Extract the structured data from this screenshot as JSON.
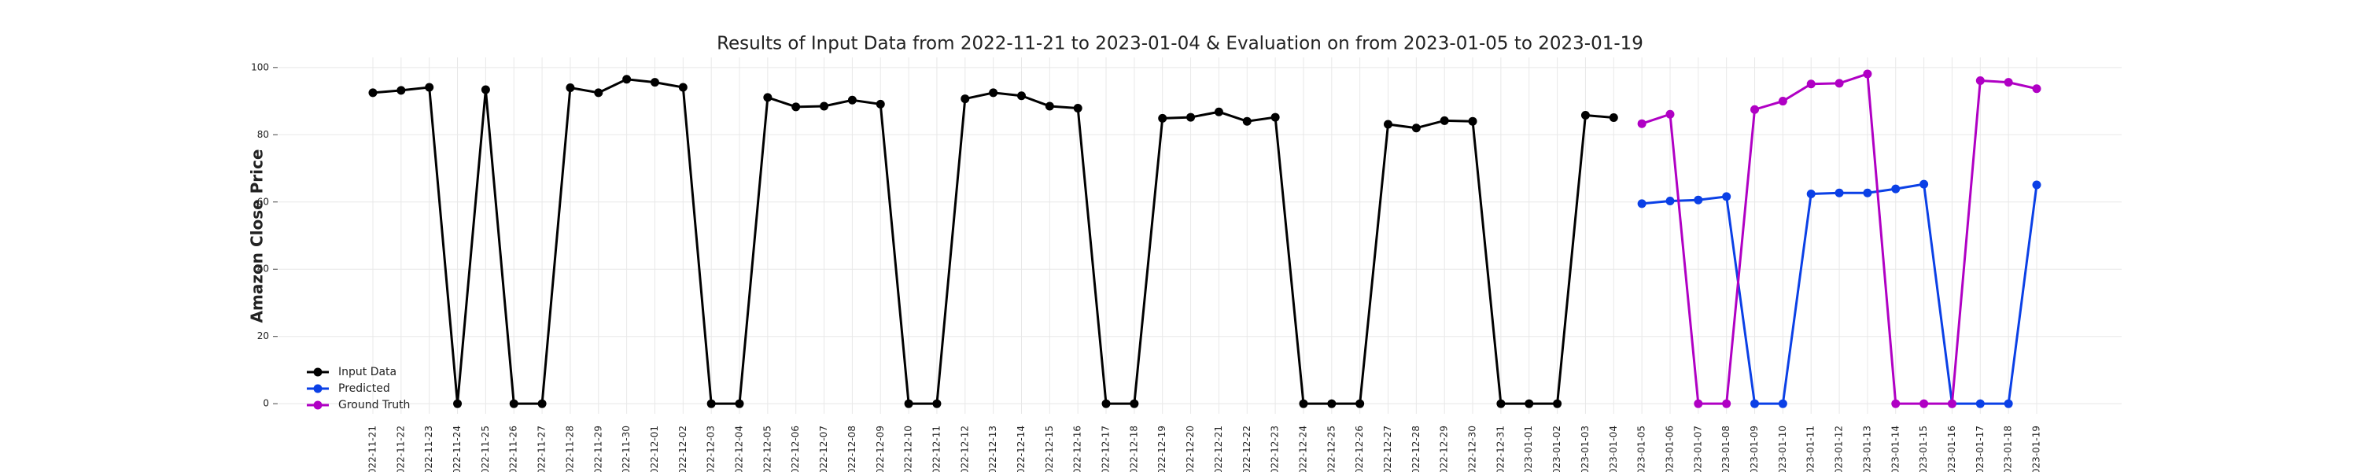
{
  "chart_data": {
    "type": "line",
    "title": "Results of Input Data from 2022-11-21 to 2023-01-04 & Evaluation on from 2023-01-05 to 2023-01-19",
    "y_label": "Amazon Close Price",
    "categories": [
      "2022-11-21",
      "2022-11-22",
      "2022-11-23",
      "2022-11-24",
      "2022-11-25",
      "2022-11-26",
      "2022-11-27",
      "2022-11-28",
      "2022-11-29",
      "2022-11-30",
      "2022-12-01",
      "2022-12-02",
      "2022-12-03",
      "2022-12-04",
      "2022-12-05",
      "2022-12-06",
      "2022-12-07",
      "2022-12-08",
      "2022-12-09",
      "2022-12-10",
      "2022-12-11",
      "2022-12-12",
      "2022-12-13",
      "2022-12-14",
      "2022-12-15",
      "2022-12-16",
      "2022-12-17",
      "2022-12-18",
      "2022-12-19",
      "2022-12-20",
      "2022-12-21",
      "2022-12-22",
      "2022-12-23",
      "2022-12-24",
      "2022-12-25",
      "2022-12-26",
      "2022-12-27",
      "2022-12-28",
      "2022-12-29",
      "2022-12-30",
      "2022-12-31",
      "2023-01-01",
      "2023-01-02",
      "2023-01-03",
      "2023-01-04",
      "2023-01-05",
      "2023-01-06",
      "2023-01-07",
      "2023-01-08",
      "2023-01-09",
      "2023-01-10",
      "2023-01-11",
      "2023-01-12",
      "2023-01-13",
      "2023-01-14",
      "2023-01-15",
      "2023-01-16",
      "2023-01-17",
      "2023-01-18",
      "2023-01-19"
    ],
    "series": [
      {
        "name": "Input Data",
        "color": "#000000",
        "values": [
          92.5,
          93.2,
          94.1,
          0,
          93.4,
          0,
          0,
          94,
          92.5,
          96.5,
          95.6,
          94.1,
          0,
          0,
          91.1,
          88.3,
          88.5,
          90.3,
          89.1,
          0,
          0,
          90.7,
          92.5,
          91.6,
          88.5,
          87.9,
          0,
          0,
          84.9,
          85.2,
          86.8,
          84,
          85.2,
          0,
          0,
          0,
          83.1,
          82,
          84.2,
          84,
          0,
          0,
          0,
          85.8,
          85.1,
          null,
          null,
          null,
          null,
          null,
          null,
          null,
          null,
          null,
          null,
          null,
          null,
          null,
          null,
          null
        ]
      },
      {
        "name": "Predicted",
        "color": "#0b40e6",
        "values": [
          null,
          null,
          null,
          null,
          null,
          null,
          null,
          null,
          null,
          null,
          null,
          null,
          null,
          null,
          null,
          null,
          null,
          null,
          null,
          null,
          null,
          null,
          null,
          null,
          null,
          null,
          null,
          null,
          null,
          null,
          null,
          null,
          null,
          null,
          null,
          null,
          null,
          null,
          null,
          null,
          null,
          null,
          null,
          null,
          null,
          59.5,
          60.3,
          60.6,
          61.6,
          0,
          0,
          62.4,
          62.7,
          62.7,
          63.9,
          65.3,
          0,
          0,
          0,
          65.1
        ]
      },
      {
        "name": "Ground Truth",
        "color": "#b000c4",
        "values": [
          null,
          null,
          null,
          null,
          null,
          null,
          null,
          null,
          null,
          null,
          null,
          null,
          null,
          null,
          null,
          null,
          null,
          null,
          null,
          null,
          null,
          null,
          null,
          null,
          null,
          null,
          null,
          null,
          null,
          null,
          null,
          null,
          null,
          null,
          null,
          null,
          null,
          null,
          null,
          null,
          null,
          null,
          null,
          null,
          null,
          83.3,
          86.1,
          0,
          0,
          87.5,
          90,
          95.1,
          95.3,
          98.1,
          0,
          0,
          0,
          96.1,
          95.6,
          93.7
        ]
      }
    ],
    "ylim": [
      -3,
      103
    ],
    "yticks": [
      0,
      20,
      40,
      60,
      80,
      100
    ],
    "grid": true,
    "legend": "lower left"
  }
}
